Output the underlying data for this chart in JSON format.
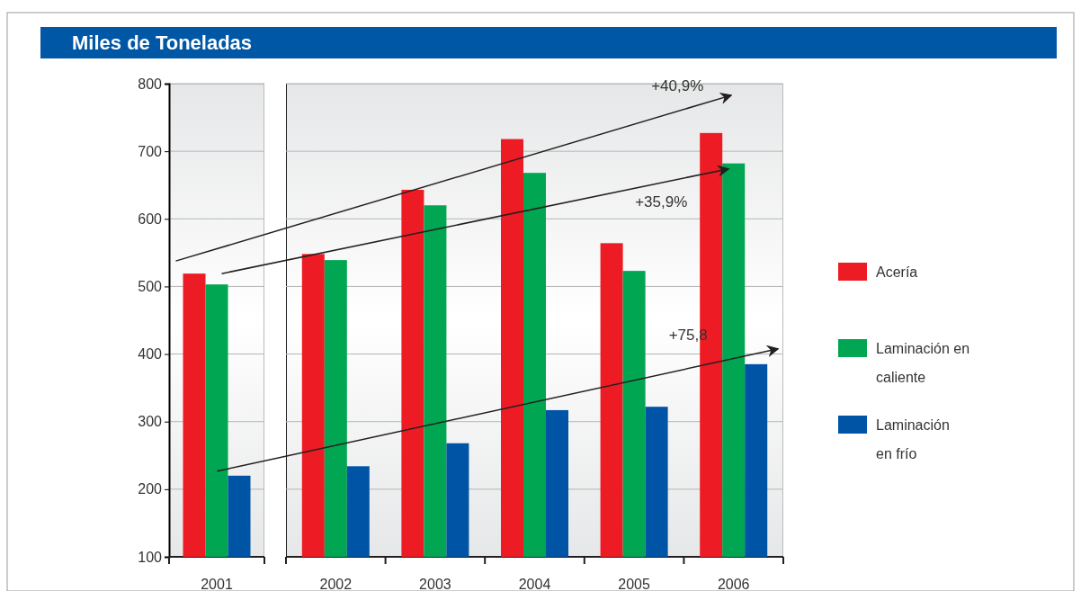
{
  "chart_data": {
    "type": "bar",
    "title": "Miles de Toneladas",
    "categories": [
      "2001",
      "2002",
      "2003",
      "2004",
      "2005",
      "2006"
    ],
    "series": [
      {
        "name": "Acería",
        "color": "#ed1c24",
        "values": [
          519,
          548,
          643,
          718,
          564,
          727
        ]
      },
      {
        "name": "Laminación en caliente",
        "color": "#00a651",
        "values": [
          503,
          539,
          620,
          668,
          523,
          682
        ]
      },
      {
        "name": "Laminación en frío",
        "color": "#0054a6",
        "values": [
          220,
          234,
          268,
          317,
          322,
          385
        ]
      }
    ],
    "ylim": [
      100,
      800
    ],
    "yticks": [
      100,
      200,
      300,
      400,
      500,
      600,
      700,
      800
    ],
    "grid": "y",
    "legend": "right",
    "annotations": [
      "+40,9%",
      "+35,9%",
      "+75,8"
    ]
  }
}
